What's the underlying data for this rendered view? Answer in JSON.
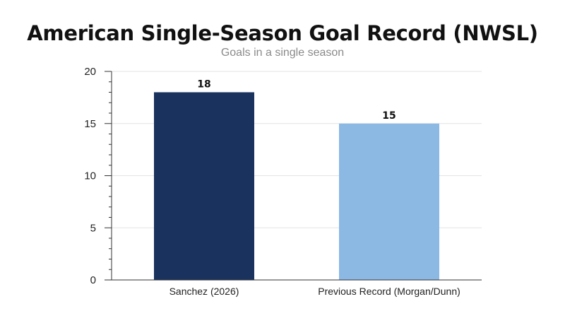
{
  "chart_data": {
    "type": "bar",
    "title": "American Single-Season Goal Record (NWSL)",
    "subtitle": "Goals in a single season",
    "categories": [
      "Sanchez (2026)",
      "Previous Record (Morgan/Dunn)"
    ],
    "values": [
      18,
      15
    ],
    "data_labels": [
      "18",
      "15"
    ],
    "bar_colors": [
      "#1a325e",
      "#8cb9e3"
    ],
    "xlabel": "",
    "ylabel": "",
    "ylim": [
      0,
      20
    ],
    "yticks": [
      0,
      5,
      10,
      15,
      20
    ],
    "ytick_labels": [
      "0",
      "5",
      "10",
      "15",
      "20"
    ],
    "minor_tick_step": 1,
    "grid": true,
    "legend": "none"
  }
}
